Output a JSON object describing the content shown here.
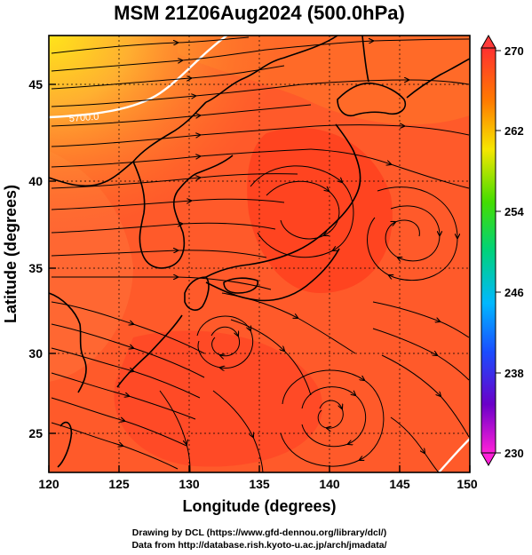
{
  "title": "MSM 21Z06Aug2024 (500.0hPa)",
  "x_axis": {
    "label": "Longitude (degrees)",
    "ticks": [
      "120",
      "125",
      "130",
      "135",
      "140",
      "145",
      "150"
    ]
  },
  "y_axis": {
    "label": "Latitude  (degrees)",
    "ticks": [
      "25",
      "30",
      "35",
      "40",
      "45"
    ]
  },
  "colorbar": {
    "ticks": [
      "270",
      "262",
      "254",
      "246",
      "238",
      "230"
    ]
  },
  "contour_label": "5700.0",
  "credits": {
    "line1": "Drawing by DCL (https://www.gfd-dennou.org/library/dcl/)",
    "line2": "Data from http://database.rish.kyoto-u.ac.jp/arch/jmadata/"
  },
  "map_data": {
    "type": "temperature-and-streamline map",
    "lon_range": [
      120,
      150
    ],
    "lat_range": [
      22.5,
      47.5
    ],
    "value_range": [
      230,
      270
    ],
    "colors": {
      "warm_high": "#ff4a1c",
      "warm_mid": "#ff6b2a",
      "cool_edge": "#ffcc22",
      "contour": "#ffffff",
      "coast": "#000000"
    }
  }
}
